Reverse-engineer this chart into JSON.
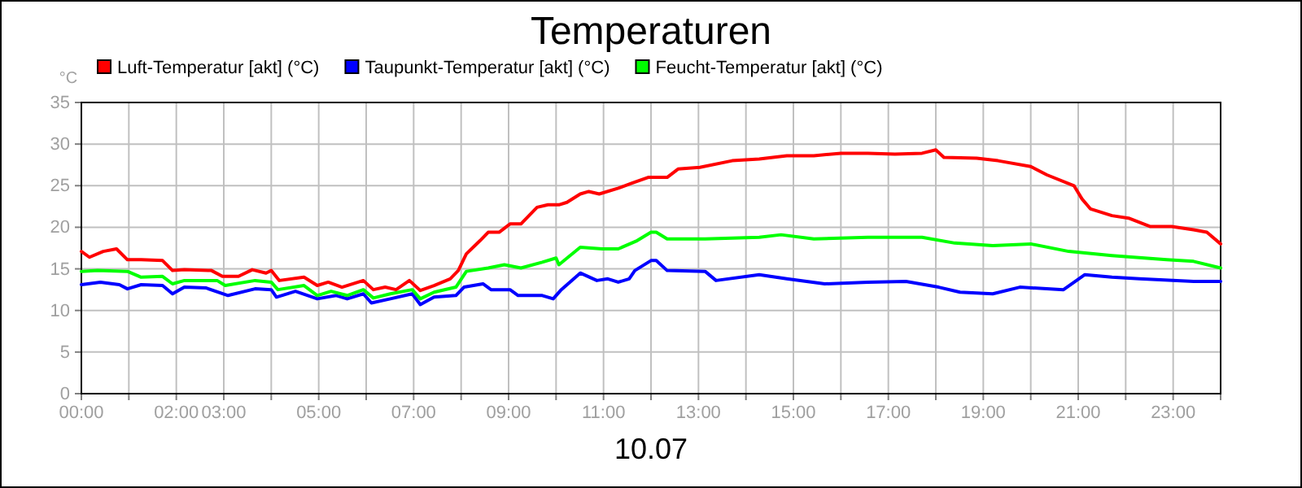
{
  "chart_data": {
    "type": "line",
    "title": "Temperaturen",
    "xlabel": "10.07",
    "ylabel": "°C",
    "xlim": [
      0,
      24
    ],
    "ylim": [
      0,
      35
    ],
    "yticks": [
      0,
      5,
      10,
      15,
      20,
      25,
      30,
      35
    ],
    "xticks": [
      {
        "value": 0,
        "label": "00:00"
      },
      {
        "value": 1,
        "label": null
      },
      {
        "value": 2,
        "label": "02:00"
      },
      {
        "value": 3,
        "label": "03:00"
      },
      {
        "value": 4,
        "label": null
      },
      {
        "value": 5,
        "label": "05:00"
      },
      {
        "value": 6,
        "label": null
      },
      {
        "value": 7,
        "label": "07:00"
      },
      {
        "value": 8,
        "label": null
      },
      {
        "value": 9,
        "label": "09:00"
      },
      {
        "value": 10,
        "label": null
      },
      {
        "value": 11,
        "label": "11:00"
      },
      {
        "value": 12,
        "label": null
      },
      {
        "value": 13,
        "label": "13:00"
      },
      {
        "value": 14,
        "label": null
      },
      {
        "value": 15,
        "label": "15:00"
      },
      {
        "value": 16,
        "label": null
      },
      {
        "value": 17,
        "label": "17:00"
      },
      {
        "value": 18,
        "label": null
      },
      {
        "value": 19,
        "label": "19:00"
      },
      {
        "value": 20,
        "label": null
      },
      {
        "value": 21,
        "label": "21:00"
      },
      {
        "value": 22,
        "label": null
      },
      {
        "value": 23,
        "label": "23:00"
      },
      {
        "value": 24,
        "label": null
      }
    ],
    "grid": true,
    "legend": "top left",
    "marker": "none",
    "line_style": "solid",
    "series": [
      {
        "name": "Luft-Temperatur [akt] (°C)",
        "color": "#ff0000",
        "x": [
          0,
          0.17,
          0.46,
          0.74,
          0.97,
          1.26,
          1.71,
          1.92,
          2.17,
          2.74,
          2.97,
          3.31,
          3.6,
          3.89,
          4.0,
          4.17,
          4.69,
          4.97,
          5.2,
          5.49,
          5.94,
          6.15,
          6.4,
          6.63,
          6.91,
          7.14,
          7.43,
          7.77,
          7.94,
          8.11,
          8.4,
          8.57,
          8.8,
          9.03,
          9.26,
          9.6,
          9.83,
          10.06,
          10.23,
          10.51,
          10.69,
          10.91,
          11.31,
          11.6,
          11.94,
          12.34,
          12.57,
          13.03,
          13.71,
          14.28,
          14.86,
          15.43,
          16.0,
          16.57,
          17.14,
          17.71,
          18.0,
          18.17,
          18.86,
          19.31,
          20.0,
          20.34,
          20.91,
          21.08,
          21.26,
          21.71,
          22.06,
          22.51,
          22.97,
          23.43,
          23.71,
          24.0
        ],
        "values": [
          17.1,
          16.4,
          17.1,
          17.4,
          16.1,
          16.1,
          16.0,
          14.8,
          14.9,
          14.8,
          14.1,
          14.1,
          14.9,
          14.5,
          14.8,
          13.6,
          14.0,
          13.0,
          13.4,
          12.8,
          13.6,
          12.5,
          12.8,
          12.5,
          13.6,
          12.4,
          13.0,
          13.8,
          14.8,
          16.8,
          18.4,
          19.4,
          19.4,
          20.4,
          20.4,
          22.4,
          22.7,
          22.7,
          23.0,
          24.0,
          24.3,
          24.0,
          24.7,
          25.3,
          26.0,
          26.0,
          27.0,
          27.2,
          28.0,
          28.2,
          28.6,
          28.6,
          28.9,
          28.9,
          28.8,
          28.9,
          29.3,
          28.4,
          28.3,
          28.0,
          27.3,
          26.3,
          25.0,
          23.4,
          22.2,
          21.4,
          21.1,
          20.1,
          20.1,
          19.7,
          19.4,
          18.0
        ]
      },
      {
        "name": "Taupunkt-Temperatur [akt] (°C)",
        "color": "#0000ff",
        "x": [
          0,
          0.4,
          0.8,
          0.97,
          1.26,
          1.71,
          1.92,
          2.17,
          2.63,
          3.09,
          3.66,
          4.0,
          4.11,
          4.51,
          4.97,
          5.37,
          5.6,
          5.94,
          6.11,
          6.51,
          6.97,
          7.14,
          7.43,
          7.89,
          8.06,
          8.46,
          8.63,
          9.03,
          9.2,
          9.71,
          9.94,
          10.11,
          10.51,
          10.86,
          11.09,
          11.31,
          11.54,
          11.66,
          12.0,
          12.11,
          12.34,
          13.14,
          13.37,
          14.28,
          14.86,
          15.66,
          16.57,
          17.37,
          18.06,
          18.51,
          19.2,
          19.77,
          20.69,
          21.14,
          21.71,
          22.29,
          23.43,
          24.0
        ],
        "values": [
          13.1,
          13.4,
          13.1,
          12.6,
          13.1,
          13.0,
          12.0,
          12.8,
          12.7,
          11.8,
          12.6,
          12.5,
          11.6,
          12.3,
          11.4,
          11.8,
          11.4,
          12.0,
          10.9,
          11.4,
          12.0,
          10.7,
          11.6,
          11.8,
          12.8,
          13.2,
          12.5,
          12.5,
          11.8,
          11.8,
          11.4,
          12.5,
          14.5,
          13.6,
          13.8,
          13.4,
          13.8,
          14.8,
          16.0,
          16.0,
          14.8,
          14.7,
          13.6,
          14.3,
          13.8,
          13.2,
          13.4,
          13.5,
          12.8,
          12.2,
          12.0,
          12.8,
          12.5,
          14.3,
          14.0,
          13.8,
          13.5,
          13.5
        ]
      },
      {
        "name": "Feucht-Temperatur [akt] (°C)",
        "color": "#00ff00",
        "x": [
          0,
          0.34,
          0.97,
          1.26,
          1.71,
          1.92,
          2.17,
          2.86,
          3.03,
          3.66,
          4.0,
          4.14,
          4.69,
          4.97,
          5.26,
          5.6,
          5.94,
          6.15,
          6.51,
          6.97,
          7.14,
          7.43,
          7.89,
          8.11,
          8.57,
          8.91,
          9.26,
          9.71,
          10.0,
          10.06,
          10.51,
          10.97,
          11.31,
          11.71,
          12.0,
          12.11,
          12.34,
          13.14,
          14.28,
          14.74,
          15.43,
          16.57,
          17.71,
          18.4,
          19.2,
          20.0,
          20.8,
          21.71,
          22.86,
          23.43,
          24.0
        ],
        "values": [
          14.7,
          14.8,
          14.7,
          14.0,
          14.1,
          13.2,
          13.6,
          13.6,
          13.0,
          13.6,
          13.4,
          12.5,
          13.0,
          11.8,
          12.3,
          11.8,
          12.5,
          11.5,
          12.0,
          12.5,
          11.4,
          12.2,
          12.8,
          14.7,
          15.1,
          15.5,
          15.1,
          15.8,
          16.3,
          15.5,
          17.6,
          17.4,
          17.4,
          18.4,
          19.4,
          19.4,
          18.6,
          18.6,
          18.8,
          19.1,
          18.6,
          18.8,
          18.8,
          18.1,
          17.8,
          18.0,
          17.1,
          16.6,
          16.1,
          15.9,
          15.1
        ]
      }
    ]
  }
}
